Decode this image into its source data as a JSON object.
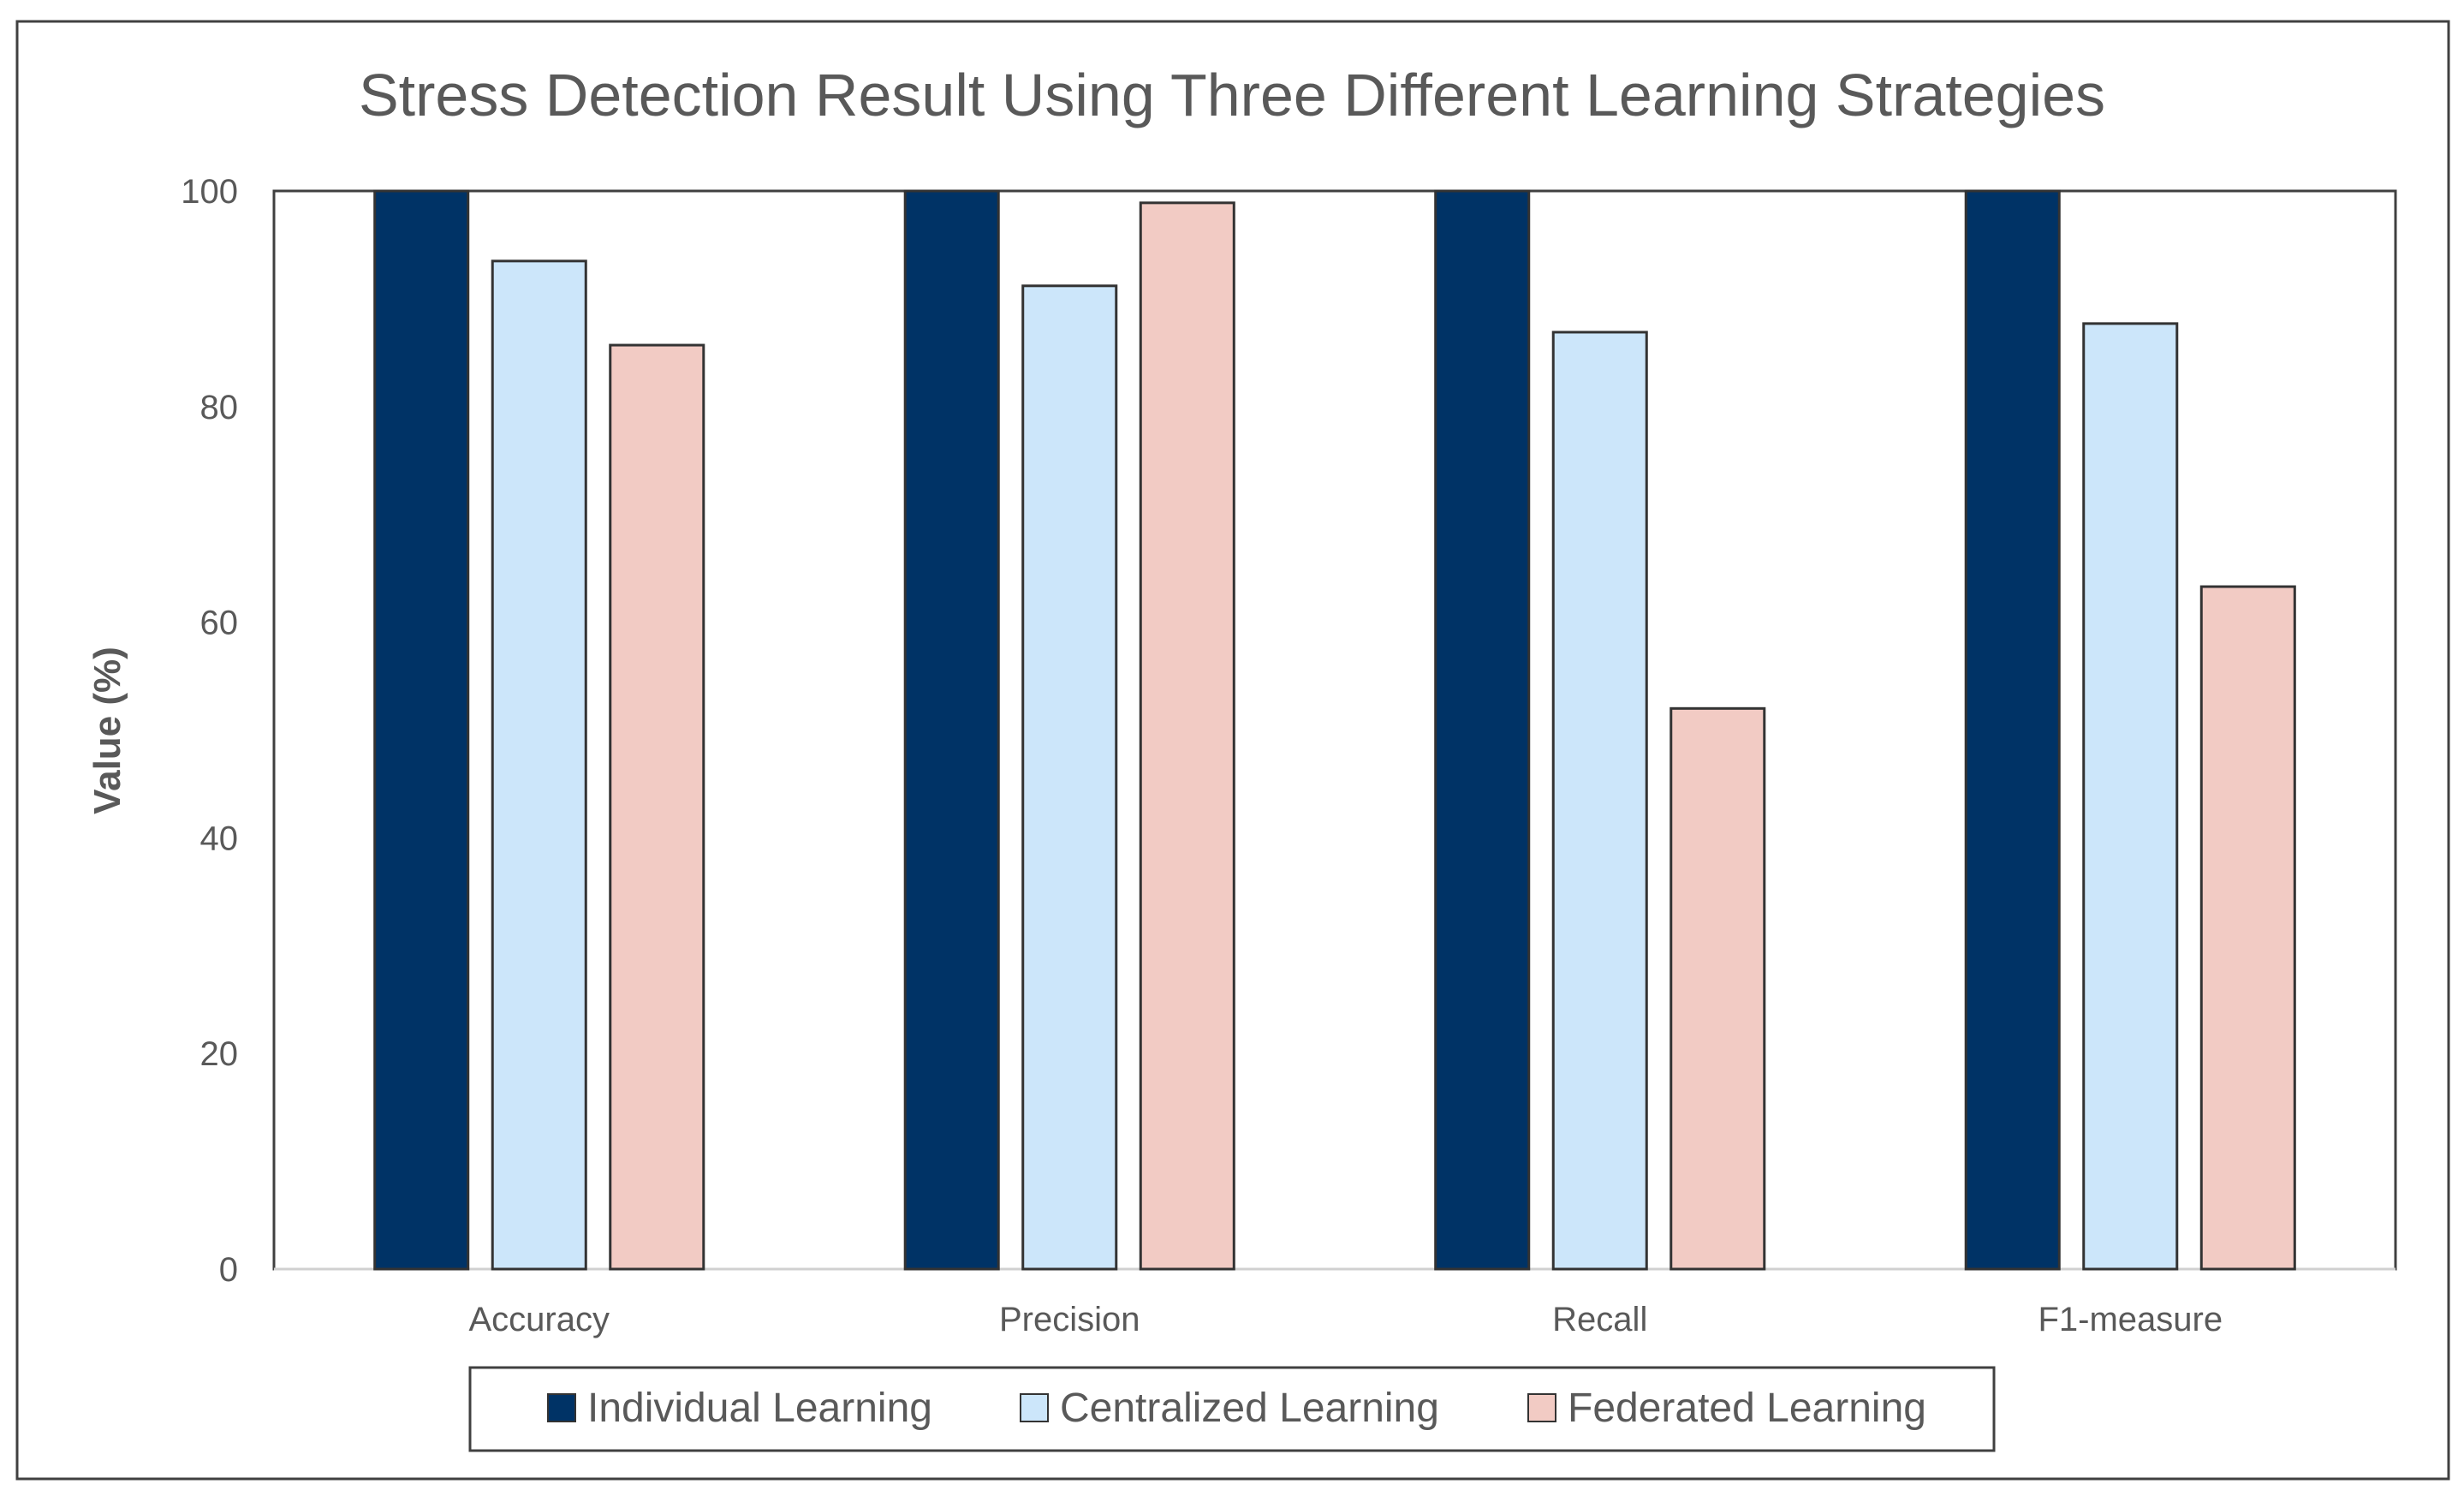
{
  "chart_data": {
    "type": "bar",
    "title": "Stress Detection Result Using Three Different Learning Strategies",
    "xlabel": "",
    "ylabel": "Value (%)",
    "ylim": [
      0,
      100
    ],
    "yticks": [
      "0",
      "20",
      "40",
      "60",
      "80",
      "100"
    ],
    "categories": [
      "Accuracy",
      "Precision",
      "Recall",
      "F1-measure"
    ],
    "series": [
      {
        "name": "Individual Learning",
        "color": "#003366",
        "values": [
          100,
          100,
          100,
          100
        ]
      },
      {
        "name": "Centralized Learning",
        "color": "#CCE6FA",
        "values": [
          93.5,
          91.2,
          86.9,
          87.7
        ]
      },
      {
        "name": "Federated Learning",
        "color": "#F2CBC4",
        "values": [
          85.7,
          98.9,
          52.0,
          63.3
        ]
      }
    ],
    "grid": false,
    "legend_position": "bottom",
    "bar_outline_color": "#333333"
  }
}
